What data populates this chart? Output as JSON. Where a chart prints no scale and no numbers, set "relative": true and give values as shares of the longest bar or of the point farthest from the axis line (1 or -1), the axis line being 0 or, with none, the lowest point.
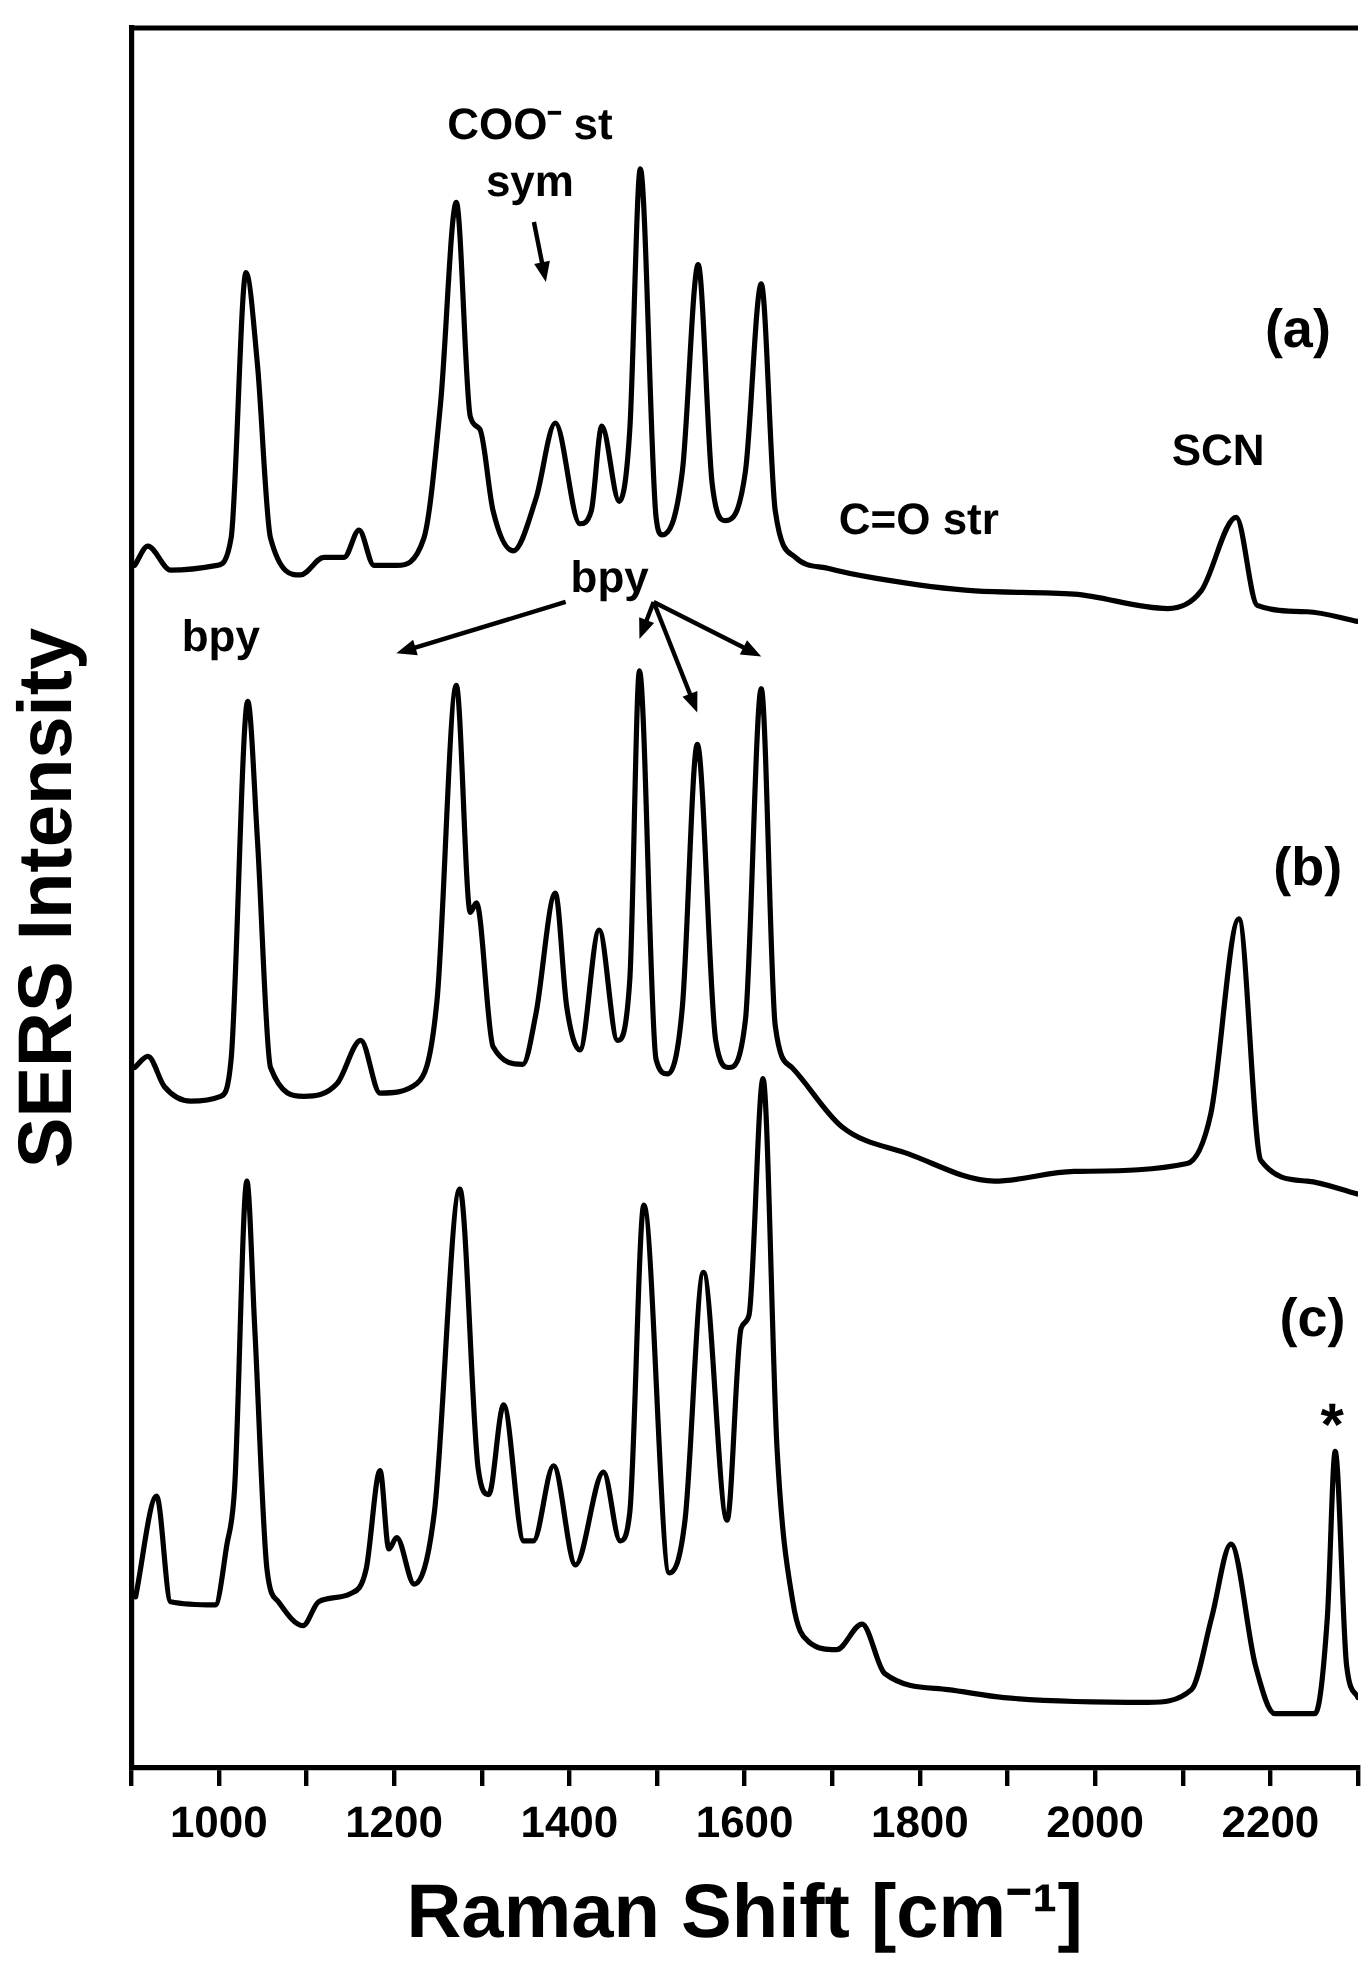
{
  "chart_data": {
    "type": "line",
    "xlabel": "Raman Shift [cm⁻¹]",
    "ylabel": "SERS Intensity",
    "relative": true,
    "grid": false,
    "legend": false,
    "marker": "none",
    "line_style": "solid",
    "xlim": [
      900,
      2300
    ],
    "xticks": [
      {
        "value": 900,
        "label": null
      },
      1000,
      {
        "value": 1100,
        "label": null
      },
      1200,
      {
        "value": 1300,
        "label": null
      },
      1400,
      {
        "value": 1500,
        "label": null
      },
      1600,
      {
        "value": 1700,
        "label": null
      },
      1800,
      {
        "value": 1900,
        "label": null
      },
      2000,
      {
        "value": 2100,
        "label": null
      },
      2200,
      {
        "value": 2300,
        "label": null
      }
    ],
    "annotations": [
      "COO⁻ st\nsym",
      "bpy",
      "bpy",
      "C=O str",
      "SCN",
      "(a)",
      "(b)",
      "(c)",
      "*"
    ],
    "series": [
      {
        "color": "#000000",
        "x": [
          904,
          919,
          945,
          998,
          1014,
          1031,
          1044,
          1059,
          1093,
          1120,
          1143,
          1160,
          1177,
          1203,
          1234,
          1253,
          1271,
          1287,
          1298,
          1313,
          1336,
          1362,
          1384,
          1412,
          1425,
          1437,
          1457,
          1469,
          1481,
          1499,
          1506,
          1529,
          1547,
          1563,
          1578,
          1601,
          1619,
          1635,
          1658,
          1696,
          1749,
          1863,
          1976,
          2083,
          2121,
          2161,
          2185,
          2242,
          2299
        ],
        "values": [
          0.752,
          0.764,
          0.749,
          0.752,
          0.769,
          0.935,
          0.878,
          0.769,
          0.746,
          0.757,
          0.757,
          0.774,
          0.752,
          0.752,
          0.769,
          0.853,
          0.979,
          0.845,
          0.837,
          0.786,
          0.761,
          0.794,
          0.841,
          0.778,
          0.786,
          0.839,
          0.792,
          0.837,
          1.0,
          0.782,
          0.771,
          0.811,
          0.94,
          0.803,
          0.78,
          0.811,
          0.928,
          0.786,
          0.757,
          0.75,
          0.744,
          0.736,
          0.734,
          0.725,
          0.736,
          0.782,
          0.727,
          0.723,
          0.717
        ]
      },
      {
        "color": "#000000",
        "x": [
          904,
          919,
          938,
          968,
          1002,
          1014,
          1033,
          1044,
          1059,
          1097,
          1135,
          1162,
          1184,
          1226,
          1249,
          1271,
          1287,
          1294,
          1313,
          1347,
          1362,
          1384,
          1397,
          1412,
          1434,
          1455,
          1469,
          1480,
          1499,
          1512,
          1529,
          1546,
          1567,
          1582,
          1601,
          1619,
          1635,
          1654,
          1711,
          1787,
          1885,
          1976,
          2105,
          2132,
          2164,
          2189,
          2242,
          2299
        ],
        "values": [
          0.438,
          0.445,
          0.426,
          0.417,
          0.42,
          0.443,
          0.667,
          0.581,
          0.438,
          0.42,
          0.428,
          0.455,
          0.422,
          0.428,
          0.48,
          0.677,
          0.535,
          0.541,
          0.451,
          0.44,
          0.472,
          0.547,
          0.476,
          0.449,
          0.524,
          0.455,
          0.493,
          0.686,
          0.443,
          0.434,
          0.476,
          0.64,
          0.455,
          0.438,
          0.468,
          0.675,
          0.464,
          0.438,
          0.401,
          0.384,
          0.367,
          0.373,
          0.378,
          0.409,
          0.531,
          0.38,
          0.367,
          0.359
        ]
      },
      {
        "color": "#000000",
        "x": [
          905,
          929,
          945,
          996,
          1009,
          1018,
          1032,
          1041,
          1055,
          1068,
          1096,
          1114,
          1150,
          1168,
          1184,
          1194,
          1203,
          1223,
          1246,
          1275,
          1296,
          1308,
          1325,
          1348,
          1359,
          1382,
          1407,
          1439,
          1458,
          1469,
          1485,
          1514,
          1532,
          1553,
          1580,
          1596,
          1605,
          1621,
          1637,
          1655,
          1673,
          1705,
          1734,
          1760,
          1832,
          1896,
          2060,
          2110,
          2133,
          2155,
          2183,
          2205,
          2251,
          2265,
          2274,
          2287,
          2300
        ],
        "values": [
          0.107,
          0.17,
          0.104,
          0.102,
          0.139,
          0.175,
          0.367,
          0.275,
          0.124,
          0.104,
          0.089,
          0.104,
          0.109,
          0.124,
          0.186,
          0.137,
          0.144,
          0.115,
          0.16,
          0.362,
          0.187,
          0.171,
          0.227,
          0.142,
          0.142,
          0.189,
          0.127,
          0.185,
          0.142,
          0.16,
          0.352,
          0.122,
          0.155,
          0.31,
          0.155,
          0.275,
          0.283,
          0.431,
          0.2,
          0.104,
          0.079,
          0.074,
          0.09,
          0.059,
          0.049,
          0.044,
          0.041,
          0.049,
          0.094,
          0.14,
          0.064,
          0.034,
          0.034,
          0.094,
          0.198,
          0.064,
          0.044
        ]
      }
    ]
  }
}
